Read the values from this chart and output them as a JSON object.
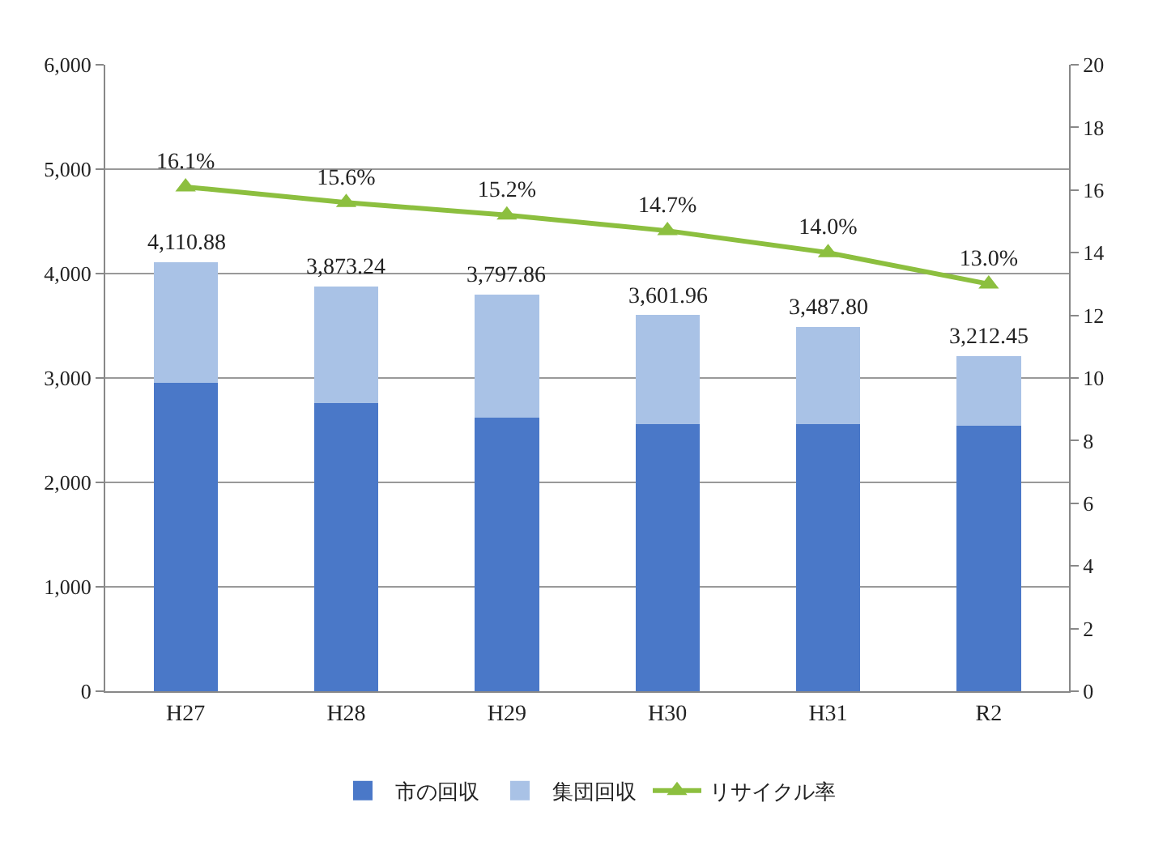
{
  "chart_data": {
    "type": "bar",
    "stacked": true,
    "categories": [
      "H27",
      "H28",
      "H29",
      "H30",
      "H31",
      "R2"
    ],
    "series": [
      {
        "name": "市の回収",
        "color": "#4a78c8",
        "values": [
          2950,
          2760,
          2620,
          2560,
          2560,
          2540
        ]
      },
      {
        "name": "集団回収",
        "color": "#a9c2e6",
        "values": [
          1160.88,
          1113.24,
          1177.86,
          1041.96,
          927.8,
          672.45
        ]
      },
      {
        "name": "リサイクル率",
        "type": "line",
        "axis": "y2",
        "color": "#8cbf3f",
        "marker": "triangle",
        "values": [
          16.1,
          15.6,
          15.2,
          14.7,
          14.0,
          13.0
        ],
        "value_labels": [
          "16.1%",
          "15.6%",
          "15.2%",
          "14.7%",
          "14.0%",
          "13.0%"
        ]
      }
    ],
    "totals": [
      "4,110.88",
      "3,873.24",
      "3,797.86",
      "3,601.96",
      "3,487.80",
      "3,212.45"
    ],
    "ylim": [
      0,
      6000
    ],
    "yticks": [
      {
        "value": 0,
        "label": "0"
      },
      {
        "value": 1000,
        "label": "1,000"
      },
      {
        "value": 2000,
        "label": "2,000"
      },
      {
        "value": 3000,
        "label": "3,000"
      },
      {
        "value": 4000,
        "label": "4,000"
      },
      {
        "value": 5000,
        "label": "5,000"
      },
      {
        "value": 6000,
        "label": "6,000"
      }
    ],
    "y2lim": [
      0,
      20
    ],
    "y2ticks": [
      0,
      2,
      4,
      6,
      8,
      10,
      12,
      14,
      16,
      18,
      20
    ],
    "grid": "y",
    "legend": "bottom"
  }
}
